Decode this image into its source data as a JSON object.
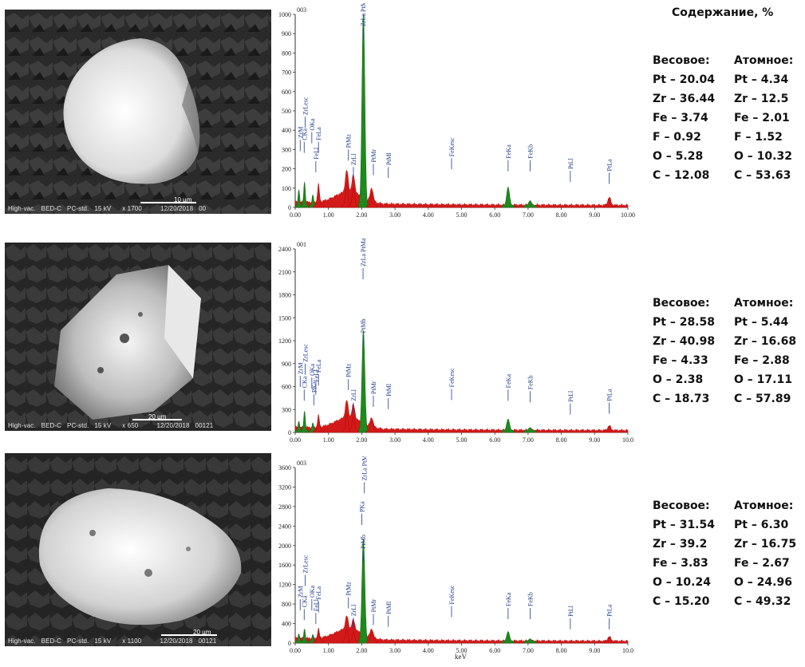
{
  "heading": "Содержание, %",
  "x_unit": "keV",
  "panels": [
    {
      "sem_info": "High-vac.   BED-C   PC-std.   15 kV      x 1700          12/20/2018   00",
      "scale_label": "10 µm",
      "chart_data": {
        "type": "line",
        "title": "003",
        "xlabel": "",
        "ylabel": "",
        "x_ticks": [
          "0.00",
          "1.00",
          "2.00",
          "3.00",
          "4.00",
          "5.00",
          "6.00",
          "7.00",
          "8.00",
          "9.00",
          "10.00"
        ],
        "y_ticks": [
          "0",
          "100",
          "200",
          "300",
          "400",
          "500",
          "600",
          "700",
          "800",
          "900",
          "1000"
        ],
        "xlim": [
          0,
          10
        ],
        "ylim": [
          0,
          1000
        ],
        "peaks": [
          {
            "x": 0.11,
            "y": 80,
            "color": "green"
          },
          {
            "x": 0.28,
            "y": 120,
            "color": "green"
          },
          {
            "x": 0.53,
            "y": 55,
            "color": "green"
          },
          {
            "x": 0.7,
            "y": 90,
            "color": "red"
          },
          {
            "x": 1.55,
            "y": 110,
            "color": "red"
          },
          {
            "x": 1.75,
            "y": 90,
            "color": "red"
          },
          {
            "x": 2.05,
            "y": 1000,
            "color": "green"
          },
          {
            "x": 2.3,
            "y": 70,
            "color": "red"
          },
          {
            "x": 6.4,
            "y": 95,
            "color": "green"
          },
          {
            "x": 7.06,
            "y": 25,
            "color": "green"
          },
          {
            "x": 9.44,
            "y": 40,
            "color": "red"
          }
        ],
        "labels": [
          {
            "text": "ZrM",
            "x": 0.15,
            "y": 350
          },
          {
            "text": "CKa",
            "x": 0.27,
            "y": 340
          },
          {
            "text": "ZrLesc",
            "x": 0.3,
            "y": 470
          },
          {
            "text": "OKa",
            "x": 0.5,
            "y": 390
          },
          {
            "text": "FeLl",
            "x": 0.62,
            "y": 240
          },
          {
            "text": "FeLa",
            "x": 0.7,
            "y": 340
          },
          {
            "text": "PtMz",
            "x": 1.6,
            "y": 300
          },
          {
            "text": "ZrLl",
            "x": 1.75,
            "y": 210
          },
          {
            "text": "ZrLa PtMa",
            "x": 2.04,
            "y": 930
          },
          {
            "text": "PtMr",
            "x": 2.35,
            "y": 225
          },
          {
            "text": "PtMl",
            "x": 2.8,
            "y": 210
          },
          {
            "text": "FeKesc",
            "x": 4.7,
            "y": 255
          },
          {
            "text": "FeKa",
            "x": 6.4,
            "y": 245
          },
          {
            "text": "FeKb",
            "x": 7.06,
            "y": 245
          },
          {
            "text": "PtLl",
            "x": 8.27,
            "y": 190
          },
          {
            "text": "PtLa",
            "x": 9.44,
            "y": 180
          }
        ]
      },
      "composition": {
        "weight_header": "Весовое:",
        "atomic_header": "Атомное:",
        "weight": [
          "Pt – 20.04",
          "Zr – 36.44",
          "Fe – 3.74",
          "F – 0.92",
          "O – 5.28",
          "C – 12.08"
        ],
        "atomic": [
          "Pt – 4.34",
          "Zr – 12.5",
          "Fe – 2.01",
          "F – 1.52",
          "O – 10.32",
          "C – 53.63"
        ]
      }
    },
    {
      "sem_info": "High-vac.   BED-C   PC-std.   15 kV      x 650          12/20/2018   00121",
      "scale_label": "20 µm",
      "chart_data": {
        "type": "line",
        "title": "001",
        "xlabel": "",
        "ylabel": "",
        "x_ticks": [
          "0.00",
          "1.00",
          "2.00",
          "3.00",
          "4.00",
          "5.00",
          "6.00",
          "7.00",
          "8.00",
          "9.00",
          "10.0"
        ],
        "y_ticks": [
          "0",
          "300",
          "600",
          "900",
          "1200",
          "1500",
          "1800",
          "2100",
          "2400"
        ],
        "xlim": [
          0,
          10
        ],
        "ylim": [
          0,
          2400
        ],
        "peaks": [
          {
            "x": 0.11,
            "y": 120,
            "color": "green"
          },
          {
            "x": 0.28,
            "y": 250,
            "color": "green"
          },
          {
            "x": 0.53,
            "y": 100,
            "color": "green"
          },
          {
            "x": 0.7,
            "y": 150,
            "color": "red"
          },
          {
            "x": 1.55,
            "y": 220,
            "color": "red"
          },
          {
            "x": 1.75,
            "y": 180,
            "color": "red"
          },
          {
            "x": 2.05,
            "y": 1300,
            "color": "green"
          },
          {
            "x": 2.3,
            "y": 120,
            "color": "red"
          },
          {
            "x": 6.4,
            "y": 150,
            "color": "green"
          },
          {
            "x": 7.06,
            "y": 40,
            "color": "green"
          },
          {
            "x": 9.44,
            "y": 60,
            "color": "red"
          }
        ],
        "labels": [
          {
            "text": "ZrM",
            "x": 0.15,
            "y": 740
          },
          {
            "text": "CKa",
            "x": 0.27,
            "y": 560
          },
          {
            "text": "ZrLesc",
            "x": 0.3,
            "y": 900
          },
          {
            "text": "PKa",
            "x": 0.56,
            "y": 500
          },
          {
            "text": "OKa",
            "x": 0.5,
            "y": 720
          },
          {
            "text": "FeLl",
            "x": 0.62,
            "y": 640
          },
          {
            "text": "FeLa",
            "x": 0.7,
            "y": 760
          },
          {
            "text": "PtMz",
            "x": 1.6,
            "y": 700
          },
          {
            "text": "ZrLl",
            "x": 1.75,
            "y": 390
          },
          {
            "text": "PtMb",
            "x": 2.04,
            "y": 1280
          },
          {
            "text": "ZrLa PtMa",
            "x": 2.04,
            "y": 2150
          },
          {
            "text": "PtMr",
            "x": 2.35,
            "y": 480
          },
          {
            "text": "PtMl",
            "x": 2.8,
            "y": 450
          },
          {
            "text": "FeKesc",
            "x": 4.7,
            "y": 570
          },
          {
            "text": "FeKa",
            "x": 6.4,
            "y": 560
          },
          {
            "text": "FeKb",
            "x": 7.06,
            "y": 540
          },
          {
            "text": "PtLl",
            "x": 8.27,
            "y": 380
          },
          {
            "text": "PtLa",
            "x": 9.44,
            "y": 390
          }
        ]
      },
      "composition": {
        "weight_header": "Весовое:",
        "atomic_header": "Атомное:",
        "weight": [
          "Pt – 28.58",
          "Zr – 40.98",
          "Fe – 4.33",
          "O – 2.38",
          "C – 18.73"
        ],
        "atomic": [
          "Pt – 5.44",
          "Zr – 16.68",
          "Fe – 2.88",
          "O – 17.11",
          "C – 57.89"
        ]
      }
    },
    {
      "sem_info": "High-vac.   BED-C   PC-std.   15 kV      x 1100          12/20/2018   00121",
      "scale_label": "20 µm",
      "chart_data": {
        "type": "line",
        "title": "003",
        "xlabel": "keV",
        "ylabel": "",
        "x_ticks": [
          "0.00",
          "1.00",
          "2.00",
          "3.00",
          "4.00",
          "5.00",
          "6.00",
          "7.00",
          "8.00",
          "9.00",
          "10.0"
        ],
        "y_ticks": [
          "0",
          "400",
          "800",
          "1200",
          "1600",
          "2000",
          "2400",
          "2800",
          "3200",
          "3600"
        ],
        "xlim": [
          0,
          10
        ],
        "ylim": [
          0,
          3600
        ],
        "peaks": [
          {
            "x": 0.11,
            "y": 150,
            "color": "green"
          },
          {
            "x": 0.28,
            "y": 250,
            "color": "green"
          },
          {
            "x": 0.53,
            "y": 140,
            "color": "green"
          },
          {
            "x": 0.7,
            "y": 180,
            "color": "red"
          },
          {
            "x": 1.55,
            "y": 260,
            "color": "red"
          },
          {
            "x": 1.75,
            "y": 200,
            "color": "red"
          },
          {
            "x": 2.05,
            "y": 2100,
            "color": "green"
          },
          {
            "x": 2.3,
            "y": 180,
            "color": "red"
          },
          {
            "x": 6.4,
            "y": 200,
            "color": "green"
          },
          {
            "x": 7.06,
            "y": 50,
            "color": "green"
          },
          {
            "x": 9.44,
            "y": 90,
            "color": "red"
          }
        ],
        "labels": [
          {
            "text": "ZrM",
            "x": 0.15,
            "y": 900
          },
          {
            "text": "CKa",
            "x": 0.27,
            "y": 700
          },
          {
            "text": "ZrLesc",
            "x": 0.3,
            "y": 1400
          },
          {
            "text": "OKa",
            "x": 0.5,
            "y": 900
          },
          {
            "text": "FeLl",
            "x": 0.62,
            "y": 620
          },
          {
            "text": "FeLa",
            "x": 0.7,
            "y": 860
          },
          {
            "text": "PtMz",
            "x": 1.6,
            "y": 940
          },
          {
            "text": "ZrLl",
            "x": 1.75,
            "y": 520
          },
          {
            "text": "PKa",
            "x": 2.0,
            "y": 2650
          },
          {
            "text": "PtMb",
            "x": 2.04,
            "y": 1900
          },
          {
            "text": "ZrLa PtMa",
            "x": 2.08,
            "y": 3300
          },
          {
            "text": "PtMr",
            "x": 2.35,
            "y": 600
          },
          {
            "text": "PtMl",
            "x": 2.8,
            "y": 560
          },
          {
            "text": "FeKesc",
            "x": 4.7,
            "y": 760
          },
          {
            "text": "FeKa",
            "x": 6.4,
            "y": 720
          },
          {
            "text": "FeKb",
            "x": 7.06,
            "y": 720
          },
          {
            "text": "PtLl",
            "x": 8.27,
            "y": 510
          },
          {
            "text": "PtLa",
            "x": 9.44,
            "y": 510
          }
        ]
      },
      "composition": {
        "weight_header": "Весовое:",
        "atomic_header": "Атомное:",
        "weight": [
          "Pt – 31.54",
          "Zr – 39.2",
          "Fe – 3.83",
          "O – 10.24",
          "C – 15.20"
        ],
        "atomic": [
          "Pt – 6.30",
          "Zr – 16.75",
          "Fe – 2.67",
          "O – 24.96",
          "C – 49.32"
        ]
      }
    }
  ]
}
